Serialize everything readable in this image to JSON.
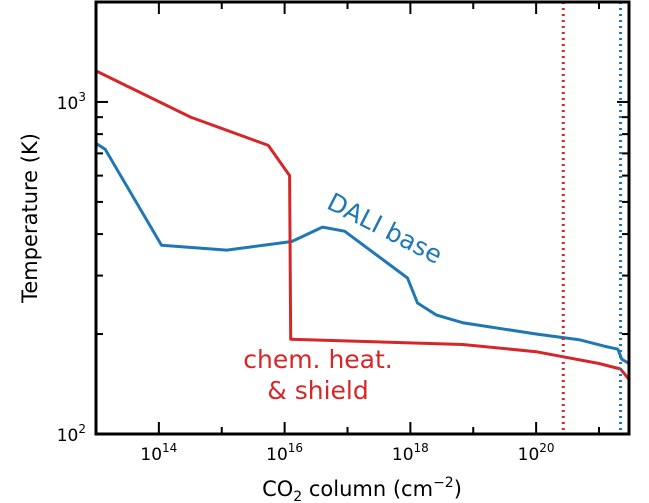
{
  "chart_data": {
    "type": "line",
    "xscale": "log",
    "yscale": "log",
    "xlim": [
      10000000000000.0,
      3e+21
    ],
    "ylim": [
      100,
      2000
    ],
    "xlabel": {
      "main": "CO",
      "sub": "2",
      "rest": " column (cm",
      "sup": "−2",
      "end": ")"
    },
    "ylabel": "Temperature (K)",
    "grid": false,
    "x_ticks": [
      {
        "value": 100000000000000.0,
        "base": "10",
        "exp": "14"
      },
      {
        "value": 1e+16,
        "base": "10",
        "exp": "16"
      },
      {
        "value": 1e+18,
        "base": "10",
        "exp": "18"
      },
      {
        "value": 1e+20,
        "base": "10",
        "exp": "20"
      }
    ],
    "y_ticks": [
      {
        "value": 100,
        "base": "10",
        "exp": "2"
      },
      {
        "value": 1000,
        "base": "10",
        "exp": "3"
      }
    ],
    "series": [
      {
        "name": "DALI base",
        "color": "#1f77b4",
        "points": [
          [
            10000000000000.0,
            750
          ],
          [
            14000000000000.0,
            720
          ],
          [
            110000000000000.0,
            370
          ],
          [
            1200000000000000.0,
            358
          ],
          [
            1.3e+16,
            380
          ],
          [
            4e+16,
            420
          ],
          [
            9e+16,
            408
          ],
          [
            9e+17,
            295
          ],
          [
            1.3e+18,
            248
          ],
          [
            2.6e+18,
            228
          ],
          [
            7e+18,
            216
          ],
          [
            1e+20,
            200
          ],
          [
            5e+20,
            192
          ],
          [
            1.2e+21,
            184
          ],
          [
            2e+21,
            180
          ],
          [
            2.3e+21,
            168
          ],
          [
            3e+21,
            163
          ]
        ]
      },
      {
        "name": "chem. heat. & shield",
        "color": "#d62728",
        "points": [
          [
            10000000000000.0,
            1240
          ],
          [
            320000000000000.0,
            900
          ],
          [
            5500000000000000.0,
            740
          ],
          [
            1.2e+16,
            600
          ],
          [
            1.25e+16,
            193
          ],
          [
            6.8e+18,
            186
          ],
          [
            1e+20,
            177
          ],
          [
            1e+21,
            163
          ],
          [
            2.2e+21,
            157
          ],
          [
            3e+21,
            146
          ]
        ]
      }
    ],
    "vertical_lines": [
      {
        "x": 2.7e+20,
        "color": "#d62728",
        "style": "dotted"
      },
      {
        "x": 2.2e+21,
        "color": "#1f77b4",
        "style": "dotted"
      }
    ],
    "annotations": [
      {
        "text": "DALI base",
        "color": "#1f77b4"
      },
      {
        "line1": "chem. heat.",
        "line2": "& shield",
        "color": "#d62728"
      }
    ]
  }
}
